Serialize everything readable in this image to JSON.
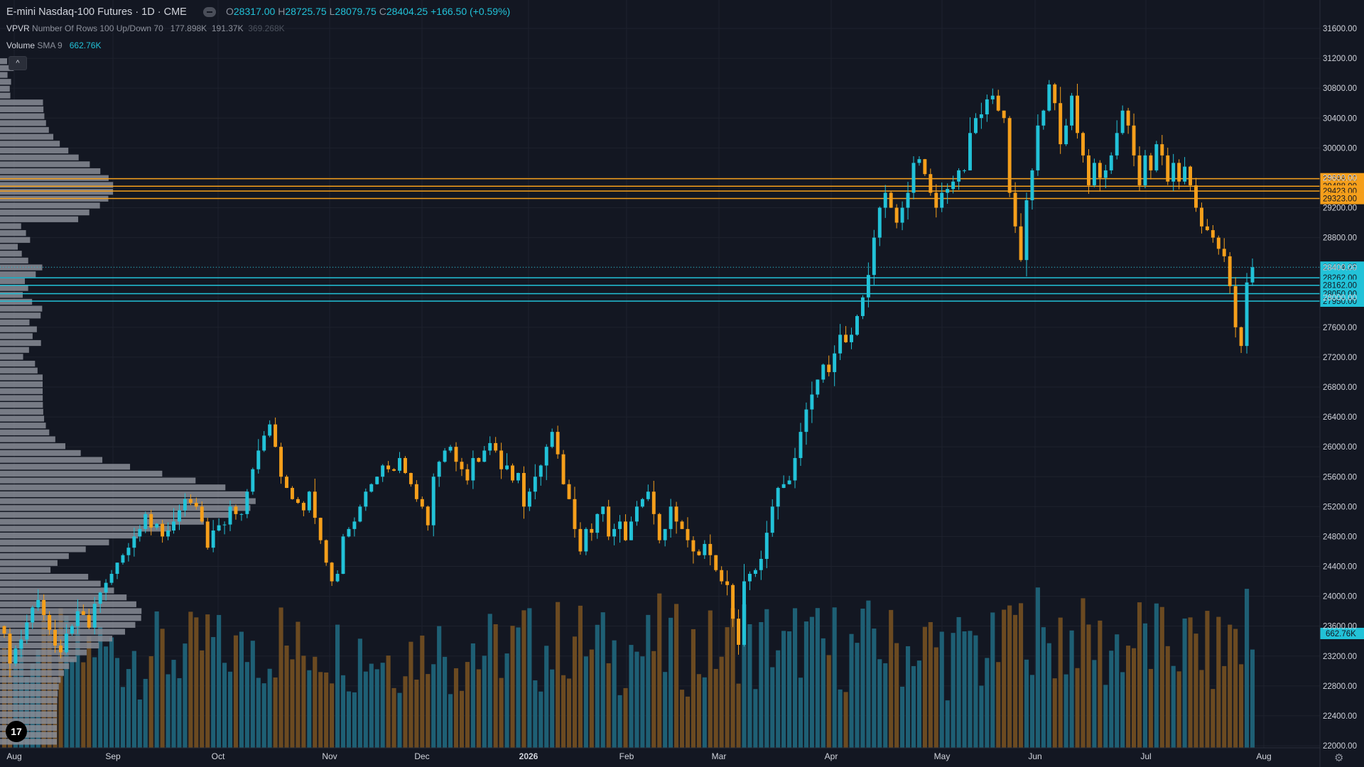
{
  "header": {
    "symbol_title": "E-mini Nasdaq-100 Futures · 1D · CME",
    "open_label": "O",
    "open": "28317.00",
    "high_label": "H",
    "high": "28725.75",
    "low_label": "L",
    "low": "28079.75",
    "close_label": "C",
    "close": "28404.25",
    "change": "+166.50 (+0.59%)"
  },
  "indicators": {
    "vpvr": {
      "name": "VPVR",
      "params": "Number Of Rows 100 Up/Down 70",
      "value1": "177.898K",
      "value2": "191.37K",
      "value3": "369.268K"
    },
    "volume": {
      "name": "Volume",
      "params": "SMA 9",
      "value": "662.76K"
    }
  },
  "collapse_glyph": "^",
  "logo_text": "17",
  "settings_glyph": "⚙",
  "colors": {
    "background": "#131722",
    "up": "#22c2d8",
    "down": "#f59f1b",
    "up_volume": "#1e5f74",
    "down_volume": "#6b4a21",
    "vp_bar": "#8a8d96",
    "axis_text": "#d1d4dc"
  },
  "chart_data": {
    "type": "candlestick",
    "x_axis_labels": [
      "Aug",
      "Sep",
      "Oct",
      "Nov",
      "Dec",
      "2026",
      "Feb",
      "Mar",
      "Apr",
      "May",
      "Jun",
      "Jul",
      "Aug"
    ],
    "y_axis_labels": [
      "31600.00",
      "31200.00",
      "30800.00",
      "30400.00",
      "30000.00",
      "29600.00",
      "29200.00",
      "28800.00",
      "28400.00",
      "28000.00",
      "27600.00",
      "27200.00",
      "26800.00",
      "26400.00",
      "26000.00",
      "25600.00",
      "25200.00",
      "24800.00",
      "24400.00",
      "24000.00",
      "23600.00",
      "23200.00",
      "22800.00",
      "22400.00",
      "22000.00"
    ],
    "ylim": [
      22000,
      31600
    ],
    "last_price": "28404.25",
    "volume_sma_value": "662.76K",
    "horizontal_levels": [
      {
        "price": 29588.0,
        "label": "29588.00",
        "color": "#f59f1b"
      },
      {
        "price": 29488.0,
        "label": "29488.00",
        "color": "#f59f1b"
      },
      {
        "price": 29423.0,
        "label": "29423.00",
        "color": "#f59f1b"
      },
      {
        "price": 29323.0,
        "label": "29323.00",
        "color": "#f59f1b"
      },
      {
        "price": 28262.0,
        "label": "28262.00",
        "color": "#22c2d8"
      },
      {
        "price": 28162.0,
        "label": "28162.00",
        "color": "#22c2d8"
      },
      {
        "price": 28050.0,
        "label": "28050.00",
        "color": "#22c2d8"
      },
      {
        "price": 27950.0,
        "label": "27950.00",
        "color": "#22c2d8"
      }
    ],
    "closes_start": 23600,
    "closes": [
      23500,
      23100,
      23300,
      23420,
      23650,
      23850,
      23950,
      23750,
      23550,
      23340,
      23250,
      23500,
      23600,
      23800,
      23750,
      23580,
      23900,
      24050,
      24180,
      24300,
      24450,
      24550,
      24650,
      24800,
      24900,
      25100,
      24920,
      24970,
      24800,
      24880,
      25000,
      25150,
      25300,
      25250,
      25200,
      25000,
      24650,
      24880,
      24950,
      24960,
      25200,
      25100,
      25100,
      25400,
      25700,
      25950,
      26150,
      26300,
      26000,
      25600,
      25450,
      25300,
      25250,
      25150,
      25400,
      25050,
      24750,
      24450,
      24200,
      24300,
      24800,
      24900,
      25000,
      25200,
      25400,
      25500,
      25600,
      25750,
      25700,
      25680,
      25850,
      25650,
      25500,
      25300,
      25200,
      24950,
      25600,
      25800,
      25950,
      26000,
      25800,
      25700,
      25550,
      25850,
      25800,
      25950,
      26050,
      25950,
      25700,
      25750,
      25550,
      25650,
      25200,
      25400,
      25600,
      25750,
      26000,
      26200,
      25900,
      25500,
      25300,
      24900,
      24600,
      24900,
      24850,
      25100,
      25200,
      24800,
      24900,
      25000,
      24750,
      25000,
      25200,
      25300,
      25400,
      25100,
      24750,
      24900,
      25200,
      25000,
      24900,
      24750,
      24600,
      24550,
      24700,
      24550,
      24350,
      24200,
      24150,
      23700,
      23350,
      24200,
      24300,
      24350,
      24500,
      24850,
      25200,
      25450,
      25500,
      25550,
      25850,
      26200,
      26500,
      26700,
      26900,
      27100,
      27000,
      27250,
      27500,
      27400,
      27500,
      27750,
      28000,
      28300,
      28800,
      29200,
      29400,
      29200,
      29000,
      29200,
      29400,
      29800,
      29850,
      29650,
      29400,
      29200,
      29400,
      29450,
      29550,
      29700,
      29700,
      30200,
      30400,
      30450,
      30650,
      30700,
      30500,
      30400,
      29400,
      28950,
      28500,
      29300,
      29700,
      30300,
      30500,
      30850,
      30600,
      30050,
      30300,
      30700,
      30200,
      29900,
      29500,
      29800,
      29600,
      29700,
      29900,
      30200,
      30500,
      30300,
      29900,
      29500,
      29900,
      29700,
      30050,
      29900,
      29550,
      29800,
      29550,
      29750,
      29500,
      29200,
      28950,
      28900,
      28800,
      28650,
      28550,
      28150,
      27600,
      27350,
      28200,
      28404
    ]
  }
}
